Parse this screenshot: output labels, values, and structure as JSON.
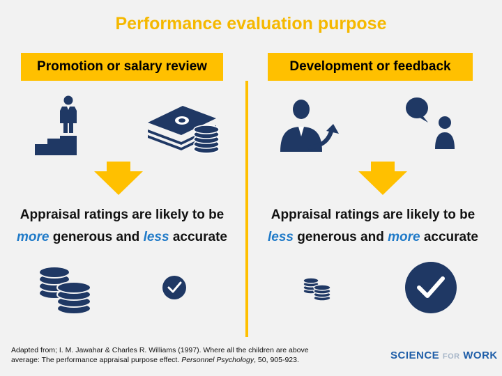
{
  "title": "Performance evaluation purpose",
  "left": {
    "heading": "Promotion or salary review",
    "statement_line1": "Appraisal ratings are likely to be",
    "statement_hl1": "more",
    "statement_mid": " generous and ",
    "statement_hl2": "less",
    "statement_end": " accurate",
    "icons": [
      "promotion-stairs-icon",
      "money-stack-icon",
      "large-coins-icon",
      "small-check-icon"
    ]
  },
  "right": {
    "heading": "Development or feedback",
    "statement_line1": "Appraisal ratings are likely to be",
    "statement_hl1": "less",
    "statement_mid": " generous and ",
    "statement_hl2": "more",
    "statement_end": " accurate",
    "icons": [
      "growth-person-icon",
      "feedback-chat-icon",
      "small-coins-icon",
      "large-check-icon"
    ]
  },
  "citation": {
    "part1": "Adapted from; I. M. Jawahar & Charles R. Williams (1997). Where all the children are above average: The performance appraisal purpose effect. ",
    "journal": "Personnel Psychology",
    "part2": ", 50, 905-923."
  },
  "logo": {
    "word1": "SCIENCE",
    "word_for": "FOR",
    "word2": "WORK"
  },
  "colors": {
    "accent": "#ffc000",
    "title": "#f5b800",
    "navy": "#1f3864",
    "highlight": "#1f7ac8",
    "background": "#f2f2f2"
  }
}
